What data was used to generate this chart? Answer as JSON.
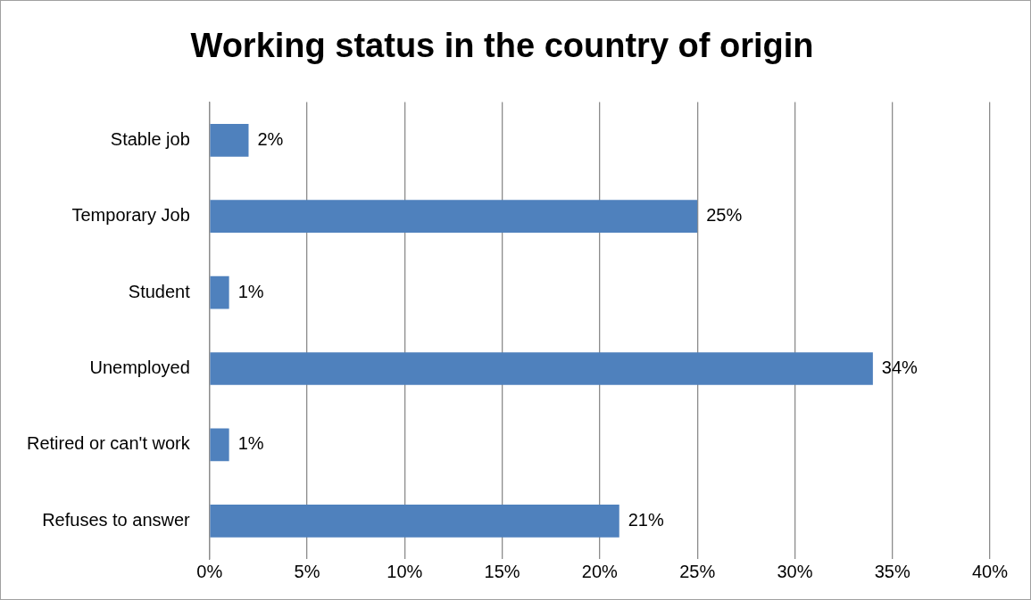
{
  "chart_data": {
    "type": "bar",
    "orientation": "horizontal",
    "title": "Working status in the country of origin",
    "categories": [
      "Stable job",
      "Temporary Job",
      "Student",
      "Unemployed",
      "Retired or can't work",
      "Refuses to answer"
    ],
    "values": [
      2,
      25,
      1,
      34,
      1,
      21
    ],
    "value_labels": [
      "2%",
      "25%",
      "1%",
      "34%",
      "1%",
      "21%"
    ],
    "color": "#4f81bd",
    "xlim": [
      0,
      40
    ],
    "xticks": [
      {
        "value": 0,
        "label": "0%"
      },
      {
        "value": 5,
        "label": "5%"
      },
      {
        "value": 10,
        "label": "10%"
      },
      {
        "value": 15,
        "label": "15%"
      },
      {
        "value": 20,
        "label": "20%"
      },
      {
        "value": 25,
        "label": "25%"
      },
      {
        "value": 30,
        "label": "30%"
      },
      {
        "value": 35,
        "label": "35%"
      },
      {
        "value": 40,
        "label": "40%"
      }
    ],
    "grid": "x"
  }
}
